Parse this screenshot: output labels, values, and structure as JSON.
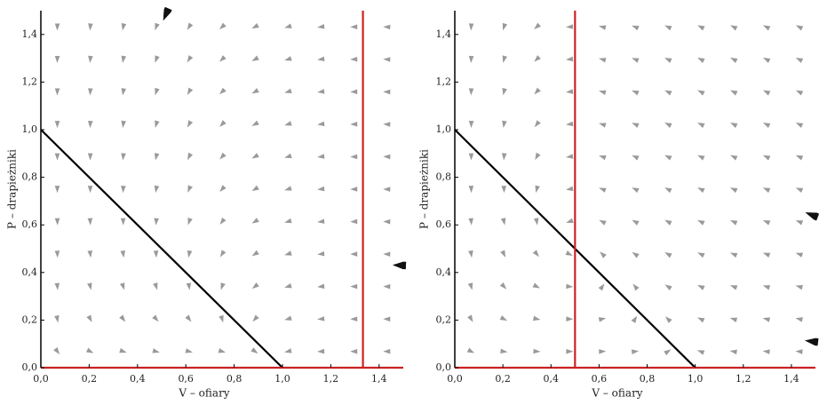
{
  "chart_data": [
    {
      "type": "streamplot",
      "xlabel": "V – ofiary",
      "ylabel": "P – drapieżniki",
      "xlim": [
        0,
        1.5
      ],
      "ylim": [
        0,
        1.5
      ],
      "xticks": [
        {
          "value": 0,
          "label": "0,0"
        },
        {
          "value": 0.2,
          "label": "0,2"
        },
        {
          "value": 0.4,
          "label": "0,4"
        },
        {
          "value": 0.6,
          "label": "0,6"
        },
        {
          "value": 0.8,
          "label": "0,8"
        },
        {
          "value": 1,
          "label": "1,0"
        },
        {
          "value": 1.2,
          "label": "1,2"
        },
        {
          "value": 1.4,
          "label": "1,4"
        }
      ],
      "yticks": [
        {
          "value": 0,
          "label": "0,0"
        },
        {
          "value": 0.2,
          "label": "0,2"
        },
        {
          "value": 0.4,
          "label": "0,4"
        },
        {
          "value": 0.6,
          "label": "0,6"
        },
        {
          "value": 0.8,
          "label": "0,8"
        },
        {
          "value": 1,
          "label": "1,0"
        },
        {
          "value": 1.2,
          "label": "1,2"
        },
        {
          "value": 1.4,
          "label": "1,4"
        }
      ],
      "lines": [
        {
          "color": "#000000",
          "x": [
            0,
            1
          ],
          "y": [
            1,
            0
          ]
        },
        {
          "color": "#cc2222",
          "x": [
            1.333,
            1.333
          ],
          "y": [
            0,
            1.5
          ]
        },
        {
          "color": "#cc2222",
          "x": [
            0,
            1.5
          ],
          "y": [
            0,
            0
          ]
        }
      ]
    },
    {
      "type": "streamplot",
      "xlabel": "V – ofiary",
      "ylabel": "P – drapieżniki",
      "xlim": [
        0,
        1.5
      ],
      "ylim": [
        0,
        1.5
      ],
      "xticks": [
        {
          "value": 0,
          "label": "0,0"
        },
        {
          "value": 0.2,
          "label": "0,2"
        },
        {
          "value": 0.4,
          "label": "0,4"
        },
        {
          "value": 0.6,
          "label": "0,6"
        },
        {
          "value": 0.8,
          "label": "0,8"
        },
        {
          "value": 1,
          "label": "1,0"
        },
        {
          "value": 1.2,
          "label": "1,2"
        },
        {
          "value": 1.4,
          "label": "1,4"
        }
      ],
      "yticks": [
        {
          "value": 0,
          "label": "0,0"
        },
        {
          "value": 0.2,
          "label": "0,2"
        },
        {
          "value": 0.4,
          "label": "0,4"
        },
        {
          "value": 0.6,
          "label": "0,6"
        },
        {
          "value": 0.8,
          "label": "0,8"
        },
        {
          "value": 1,
          "label": "1,0"
        },
        {
          "value": 1.2,
          "label": "1,2"
        },
        {
          "value": 1.4,
          "label": "1,4"
        }
      ],
      "lines": [
        {
          "color": "#000000",
          "x": [
            0,
            1
          ],
          "y": [
            1,
            0
          ]
        },
        {
          "color": "#cc2222",
          "x": [
            0.5,
            0.5
          ],
          "y": [
            0,
            1.5
          ]
        },
        {
          "color": "#cc2222",
          "x": [
            0,
            1.5
          ],
          "y": [
            0,
            0
          ]
        }
      ]
    }
  ]
}
